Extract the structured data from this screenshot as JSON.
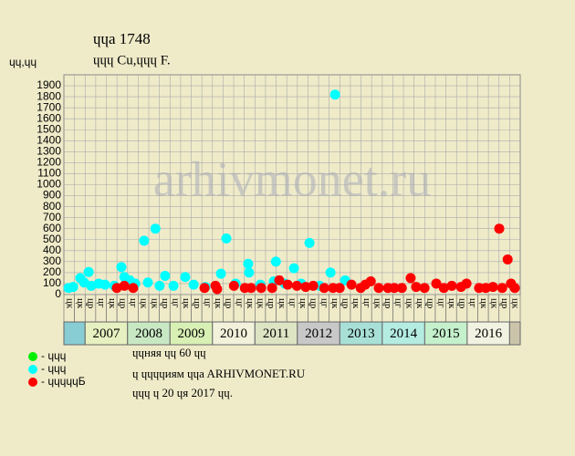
{
  "chart_data": {
    "type": "scatter",
    "title": "ɥɥa 1748",
    "subtitle": "ɥɥɥ Cu,ɥɥɥ F.",
    "y_label": "ɥɥ,ɥɥ",
    "watermark": "arhivmonet.ru",
    "xlim": [
      2006.52,
      2017.39
    ],
    "ylim": [
      0,
      2000
    ],
    "yticks": [
      0,
      100,
      200,
      300,
      400,
      500,
      600,
      700,
      800,
      900,
      1000,
      1100,
      1200,
      1300,
      1400,
      1500,
      1600,
      1700,
      1800,
      1900
    ],
    "grid": true,
    "column_labels": [
      "цк",
      "цк",
      "цр",
      "цг",
      "цк",
      "цр",
      "цг",
      "цк",
      "цк",
      "цр",
      "цг",
      "цк",
      "цр",
      "цг",
      "цк",
      "цр",
      "цг",
      "цк",
      "цк",
      "цр",
      "цк",
      "цг",
      "цк",
      "цр",
      "цг",
      "цк",
      "цр",
      "цк",
      "цг",
      "цк",
      "цр",
      "цг",
      "цк",
      "цк",
      "цр",
      "цг",
      "цк",
      "цр",
      "цг",
      "цк",
      "цк",
      "цр",
      "цк"
    ],
    "year_groups": [
      {
        "label": "2007",
        "color": "#e6f0c0"
      },
      {
        "label": "2008",
        "color": "#c8e8c4"
      },
      {
        "label": "2009",
        "color": "#d8f0b4"
      },
      {
        "label": "2010",
        "color": "#f2f2dc"
      },
      {
        "label": "2011",
        "color": "#dce4c4"
      },
      {
        "label": "2012",
        "color": "#c8c8c8"
      },
      {
        "label": "2013",
        "color": "#a8e0d8"
      },
      {
        "label": "2014",
        "color": "#b4ece2"
      },
      {
        "label": "2015",
        "color": "#c4f0cc"
      },
      {
        "label": "2016",
        "color": "#f2f2e2"
      }
    ],
    "series": [
      {
        "name": "- ɥɥɥ",
        "color": "#00ee00",
        "x": [],
        "values": []
      },
      {
        "name": "- ɥɥɥ",
        "color": "#00ffff",
        "x": [
          2006.63,
          2006.74,
          2006.91,
          2007.0,
          2007.11,
          2007.17,
          2007.35,
          2007.5,
          2007.72,
          2007.89,
          2007.96,
          2008.09,
          2008.22,
          2008.43,
          2008.52,
          2008.7,
          2008.8,
          2008.93,
          2009.13,
          2009.41,
          2009.61,
          2009.89,
          2010.26,
          2010.39,
          2010.61,
          2010.91,
          2010.93,
          2011.2,
          2011.52,
          2011.57,
          2011.78,
          2012.0,
          2012.17,
          2012.37,
          2012.61,
          2012.87,
          2012.98,
          2013.22
        ],
        "values": [
          60,
          70,
          150,
          110,
          205,
          80,
          100,
          90,
          80,
          250,
          160,
          130,
          100,
          490,
          110,
          600,
          80,
          170,
          80,
          160,
          90,
          70,
          190,
          510,
          100,
          280,
          200,
          90,
          120,
          300,
          100,
          240,
          100,
          470,
          80,
          200,
          1820,
          130
        ]
      },
      {
        "name": "- ɥɥɥɥɥБ",
        "color": "#ff0000",
        "x": [
          2007.78,
          2007.96,
          2008.17,
          2009.87,
          2010.13,
          2010.17,
          2010.57,
          2010.83,
          2010.98,
          2011.22,
          2011.48,
          2011.65,
          2011.85,
          2012.07,
          2012.28,
          2012.46,
          2012.72,
          2012.93,
          2013.09,
          2013.37,
          2013.59,
          2013.7,
          2013.83,
          2014.02,
          2014.24,
          2014.39,
          2014.57,
          2014.78,
          2014.91,
          2015.11,
          2015.39,
          2015.57,
          2015.76,
          2015.98,
          2016.11,
          2016.41,
          2016.57,
          2016.74,
          2016.89,
          2016.96,
          2017.09,
          2017.17,
          2017.26
        ],
        "values": [
          60,
          80,
          60,
          60,
          80,
          50,
          80,
          60,
          60,
          60,
          60,
          130,
          90,
          80,
          70,
          80,
          60,
          60,
          60,
          90,
          60,
          90,
          120,
          60,
          60,
          60,
          60,
          150,
          70,
          60,
          100,
          60,
          80,
          70,
          100,
          60,
          60,
          70,
          600,
          60,
          320,
          100,
          60
        ]
      }
    ],
    "notes": [
      "ɥɥняя ɥɥ 60 ɥɥ",
      "ɥ ɥɥɥɥиям ɥɥa ARHIVMONET.RU",
      "ɥɥɥ ɥ 20 ɥя 2017 ɥɥ."
    ]
  }
}
